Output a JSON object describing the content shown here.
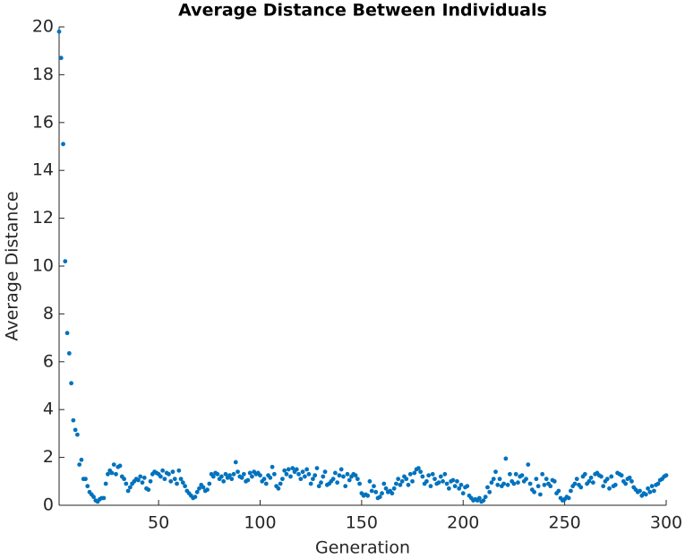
{
  "chart_data": {
    "type": "scatter",
    "title": "Average Distance Between Individuals",
    "x_label": "Generation",
    "y_label": "Average Distance",
    "color": "#0072bd",
    "grid": false,
    "xlim": [
      1,
      300
    ],
    "ylim": [
      0,
      20
    ],
    "xticks": [
      50,
      100,
      150,
      200,
      250,
      300
    ],
    "yticks": [
      0,
      2,
      4,
      6,
      8,
      10,
      12,
      14,
      16,
      18,
      20
    ],
    "x": [
      1,
      2,
      3,
      4,
      5,
      6,
      7,
      8,
      9,
      10,
      11,
      12,
      13,
      14,
      15,
      16,
      17,
      18,
      19,
      20,
      21,
      22,
      23,
      24,
      25,
      26,
      27,
      28,
      29,
      30,
      31,
      32,
      33,
      34,
      35,
      36,
      37,
      38,
      39,
      40,
      41,
      42,
      43,
      44,
      45,
      46,
      47,
      48,
      49,
      50,
      51,
      52,
      53,
      54,
      55,
      56,
      57,
      58,
      59,
      60,
      61,
      62,
      63,
      64,
      65,
      66,
      67,
      68,
      69,
      70,
      71,
      72,
      73,
      74,
      75,
      76,
      77,
      78,
      79,
      80,
      81,
      82,
      83,
      84,
      85,
      86,
      87,
      88,
      89,
      90,
      91,
      92,
      93,
      94,
      95,
      96,
      97,
      98,
      99,
      100,
      101,
      102,
      103,
      104,
      105,
      106,
      107,
      108,
      109,
      110,
      111,
      112,
      113,
      114,
      115,
      116,
      117,
      118,
      119,
      120,
      121,
      122,
      123,
      124,
      125,
      126,
      127,
      128,
      129,
      130,
      131,
      132,
      133,
      134,
      135,
      136,
      137,
      138,
      139,
      140,
      141,
      142,
      143,
      144,
      145,
      146,
      147,
      148,
      149,
      150,
      151,
      152,
      153,
      154,
      155,
      156,
      157,
      158,
      159,
      160,
      161,
      162,
      163,
      164,
      165,
      166,
      167,
      168,
      169,
      170,
      171,
      172,
      173,
      174,
      175,
      176,
      177,
      178,
      179,
      180,
      181,
      182,
      183,
      184,
      185,
      186,
      187,
      188,
      189,
      190,
      191,
      192,
      193,
      194,
      195,
      196,
      197,
      198,
      199,
      200,
      201,
      202,
      203,
      204,
      205,
      206,
      207,
      208,
      209,
      210,
      211,
      212,
      213,
      214,
      215,
      216,
      217,
      218,
      219,
      220,
      221,
      222,
      223,
      224,
      225,
      226,
      227,
      228,
      229,
      230,
      231,
      232,
      233,
      234,
      235,
      236,
      237,
      238,
      239,
      240,
      241,
      242,
      243,
      244,
      245,
      246,
      247,
      248,
      249,
      250,
      251,
      252,
      253,
      254,
      255,
      256,
      257,
      258,
      259,
      260,
      261,
      262,
      263,
      264,
      265,
      266,
      267,
      268,
      269,
      270,
      271,
      272,
      273,
      274,
      275,
      276,
      277,
      278,
      279,
      280,
      281,
      282,
      283,
      284,
      285,
      286,
      287,
      288,
      289,
      290,
      291,
      292,
      293,
      294,
      295,
      296,
      297,
      298,
      299,
      300
    ],
    "values": [
      19.8,
      18.7,
      15.1,
      10.2,
      7.2,
      6.35,
      5.1,
      3.55,
      3.15,
      2.95,
      1.7,
      1.9,
      1.1,
      1.1,
      0.8,
      0.55,
      0.45,
      0.35,
      0.2,
      0.15,
      0.25,
      0.3,
      0.3,
      0.9,
      1.3,
      1.45,
      1.35,
      1.7,
      1.3,
      1.6,
      1.65,
      1.2,
      1.1,
      0.9,
      0.6,
      0.75,
      0.9,
      1.0,
      1.1,
      1.05,
      1.2,
      0.95,
      1.15,
      0.7,
      0.65,
      1.0,
      1.3,
      1.4,
      1.35,
      1.3,
      1.2,
      1.45,
      1.1,
      1.35,
      1.3,
      1.0,
      1.4,
      1.1,
      0.9,
      1.45,
      1.1,
      0.95,
      0.8,
      0.6,
      0.5,
      0.4,
      0.3,
      0.35,
      0.55,
      0.7,
      0.85,
      0.75,
      0.6,
      0.65,
      0.9,
      1.3,
      1.2,
      1.35,
      1.3,
      1.1,
      1.2,
      1.0,
      1.3,
      1.15,
      1.25,
      1.1,
      1.3,
      1.8,
      1.4,
      1.2,
      1.15,
      1.3,
      1.0,
      1.05,
      1.35,
      1.2,
      1.4,
      1.3,
      1.35,
      1.25,
      1.0,
      1.1,
      0.9,
      1.25,
      1.15,
      1.6,
      1.3,
      0.8,
      0.7,
      0.9,
      1.1,
      1.45,
      1.3,
      1.5,
      1.2,
      1.55,
      1.4,
      1.5,
      1.3,
      1.1,
      1.4,
      1.2,
      1.5,
      1.3,
      0.9,
      1.1,
      1.25,
      1.55,
      0.8,
      0.95,
      1.2,
      1.4,
      0.85,
      0.9,
      1.0,
      1.1,
      1.35,
      0.95,
      1.25,
      1.5,
      1.2,
      0.8,
      1.3,
      1.05,
      1.2,
      1.3,
      1.25,
      1.1,
      0.9,
      0.5,
      0.4,
      0.45,
      0.4,
      1.0,
      0.6,
      0.8,
      0.55,
      0.3,
      0.35,
      0.5,
      0.9,
      0.7,
      0.55,
      0.6,
      0.5,
      0.7,
      0.9,
      1.1,
      0.85,
      1.0,
      1.2,
      1.1,
      0.85,
      1.3,
      1.0,
      1.35,
      1.5,
      1.55,
      1.4,
      1.2,
      0.9,
      1.0,
      1.25,
      0.8,
      1.3,
      1.1,
      0.9,
      0.95,
      1.2,
      1.0,
      1.3,
      0.9,
      0.7,
      1.0,
      1.05,
      0.8,
      1.0,
      0.7,
      0.85,
      0.5,
      0.75,
      0.8,
      0.4,
      0.3,
      0.2,
      0.25,
      0.2,
      0.3,
      0.15,
      0.2,
      0.35,
      0.75,
      0.55,
      0.95,
      1.1,
      1.4,
      0.85,
      1.1,
      0.8,
      0.9,
      1.95,
      0.85,
      1.3,
      1.0,
      0.9,
      1.3,
      0.95,
      1.2,
      1.25,
      1.0,
      1.1,
      1.7,
      0.9,
      0.65,
      0.55,
      1.1,
      0.8,
      0.45,
      1.3,
      0.85,
      1.1,
      0.9,
      0.8,
      1.05,
      1.0,
      0.5,
      0.6,
      0.3,
      0.2,
      0.25,
      0.35,
      0.3,
      0.6,
      0.8,
      0.9,
      1.1,
      0.85,
      0.75,
      1.2,
      1.3,
      0.9,
      1.0,
      1.15,
      0.95,
      1.3,
      1.35,
      1.25,
      1.2,
      0.8,
      1.0,
      1.1,
      0.7,
      1.2,
      0.8,
      0.85,
      1.35,
      1.3,
      1.25,
      1.0,
      0.9,
      1.1,
      1.15,
      1.0,
      0.75,
      0.65,
      0.55,
      0.6,
      0.4,
      0.5,
      0.45,
      0.7,
      0.55,
      0.8,
      0.6,
      0.85,
      0.9,
      1.05,
      1.1,
      1.2,
      1.25
    ]
  }
}
